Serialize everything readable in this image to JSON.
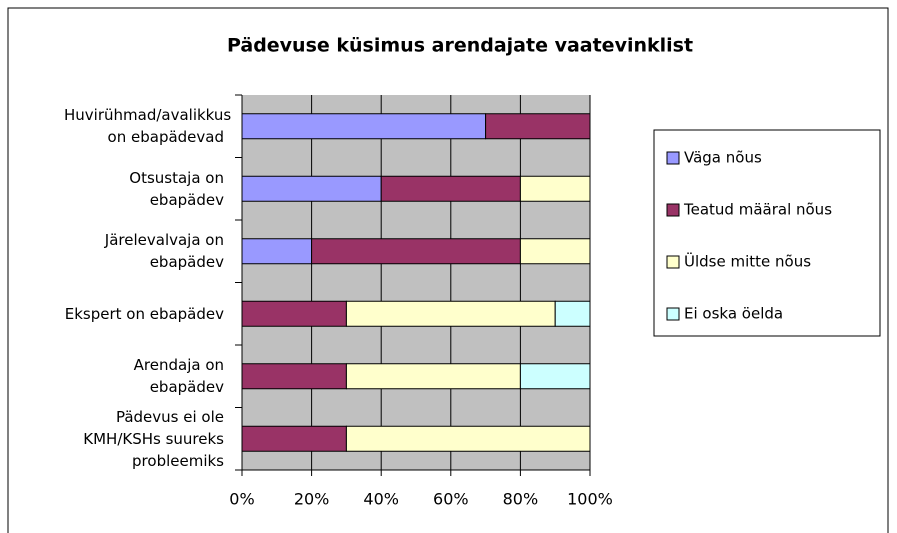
{
  "chart_data": {
    "type": "stacked-barh",
    "title": "Pädevuse küsimus arendajate vaatevinklist",
    "categories": [
      "Huvirühmad/avalikkus on ebapädevad",
      "Otsustaja on ebapädev",
      "Järelevalvaja on ebapädev",
      "Ekspert on ebapädev",
      "Arendaja on ebapädev",
      "Pädevus ei ole KMH/KSHs suureks probleemiks"
    ],
    "series": [
      {
        "name": "Väga nõus",
        "color": "#9999ff",
        "values": [
          70,
          40,
          20,
          0,
          0,
          0
        ]
      },
      {
        "name": "Teatud määral nõus",
        "color": "#993366",
        "values": [
          30,
          40,
          60,
          30,
          30,
          30
        ]
      },
      {
        "name": "Üldse mitte nõus",
        "color": "#ffffcc",
        "values": [
          0,
          20,
          20,
          60,
          50,
          70
        ]
      },
      {
        "name": "Ei oska öelda",
        "color": "#ccffff",
        "values": [
          0,
          0,
          0,
          10,
          20,
          0
        ]
      }
    ],
    "xlim": [
      0,
      100
    ],
    "xticks": [
      {
        "value": 0,
        "label": "0%"
      },
      {
        "value": 20,
        "label": "20%"
      },
      {
        "value": 40,
        "label": "40%"
      },
      {
        "value": 60,
        "label": "60%"
      },
      {
        "value": 80,
        "label": "80%"
      },
      {
        "value": 100,
        "label": "100%"
      }
    ],
    "grid": true,
    "legend": "right",
    "background": "#c0c0c0"
  }
}
